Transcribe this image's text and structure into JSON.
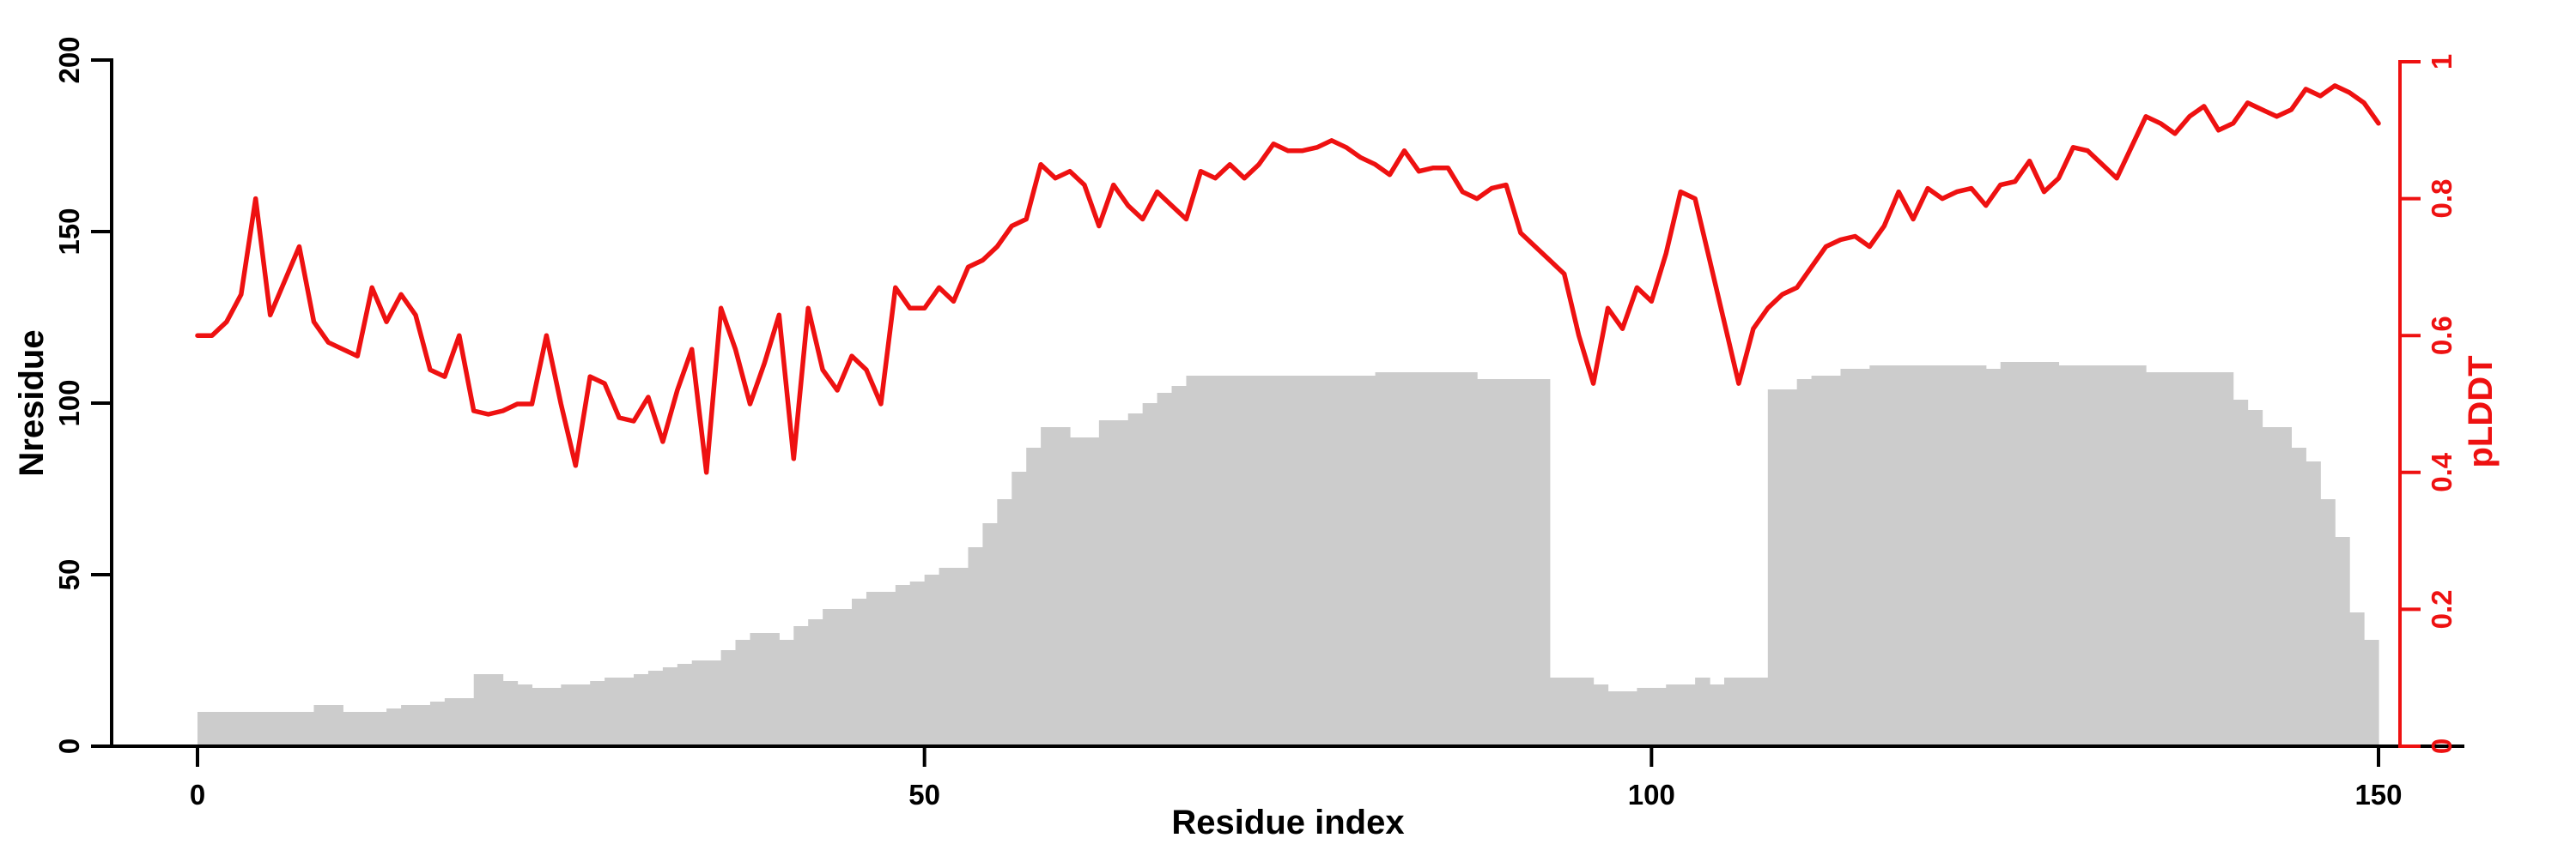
{
  "figure": {
    "background": "#ffffff"
  },
  "chart_data": {
    "type": "bar+line",
    "title": "",
    "axes": {
      "x": {
        "label": "Residue index",
        "ticks": [
          0,
          50,
          100,
          150
        ],
        "tick_labels": [
          "0",
          "50",
          "100",
          "150"
        ],
        "range": [
          0,
          151.6
        ],
        "color": "#000000"
      },
      "y_left": {
        "label": "Nresidue",
        "ticks": [
          0,
          50,
          100,
          150,
          200
        ],
        "tick_labels": [
          "0",
          "50",
          "100",
          "150",
          "200"
        ],
        "range": [
          0,
          200
        ],
        "color": "#000000"
      },
      "y_right": {
        "label": "pLDDT",
        "ticks": [
          0,
          0.2,
          0.4,
          0.6,
          0.8,
          1
        ],
        "tick_labels": [
          "0",
          "0.2",
          "0.4",
          "0.6",
          "0.8",
          "1"
        ],
        "range": [
          0,
          1
        ],
        "color": "#ee1111"
      }
    },
    "grid": false,
    "legend": "none",
    "bars": {
      "name": "Nresidue",
      "color": "#cccccc",
      "bin_start": 0,
      "bin_width": 1,
      "values": [
        10,
        10,
        10,
        10,
        10,
        10,
        10,
        10,
        12,
        12,
        10,
        10,
        10,
        11,
        12,
        12,
        13,
        14,
        14,
        21,
        21,
        19,
        18,
        17,
        17,
        18,
        18,
        19,
        20,
        20,
        21,
        22,
        23,
        24,
        25,
        25,
        28,
        31,
        33,
        33,
        31,
        35,
        37,
        40,
        40,
        43,
        45,
        45,
        47,
        48,
        50,
        52,
        52,
        58,
        65,
        72,
        80,
        87,
        93,
        93,
        90,
        90,
        95,
        95,
        97,
        100,
        103,
        105,
        108,
        108,
        108,
        108,
        108,
        108,
        108,
        108,
        108,
        108,
        108,
        108,
        108,
        109,
        109,
        109,
        109,
        109,
        109,
        109,
        107,
        107,
        107,
        107,
        107,
        20,
        20,
        20,
        18,
        16,
        16,
        17,
        17,
        18,
        18,
        20,
        18,
        20,
        20,
        20,
        104,
        104,
        107,
        108,
        108,
        110,
        110,
        111,
        111,
        111,
        111,
        111,
        111,
        111,
        111,
        110,
        112,
        112,
        112,
        112,
        111,
        111,
        111,
        111,
        111,
        111,
        109,
        109,
        109,
        109,
        109,
        109,
        101,
        98,
        93,
        93,
        87,
        83,
        72,
        61,
        39,
        31
      ]
    },
    "line": {
      "name": "pLDDT",
      "color": "#ee1111",
      "x_start": 0,
      "x_step": 1,
      "values": [
        0.6,
        0.6,
        0.62,
        0.66,
        0.8,
        0.63,
        0.68,
        0.73,
        0.62,
        0.59,
        0.58,
        0.57,
        0.67,
        0.62,
        0.66,
        0.63,
        0.55,
        0.54,
        0.6,
        0.49,
        0.485,
        0.49,
        0.5,
        0.5,
        0.6,
        0.5,
        0.41,
        0.54,
        0.53,
        0.48,
        0.475,
        0.51,
        0.445,
        0.52,
        0.58,
        0.4,
        0.64,
        0.58,
        0.5,
        0.56,
        0.63,
        0.42,
        0.64,
        0.55,
        0.52,
        0.57,
        0.55,
        0.5,
        0.67,
        0.64,
        0.64,
        0.67,
        0.65,
        0.7,
        0.71,
        0.73,
        0.76,
        0.77,
        0.85,
        0.83,
        0.84,
        0.82,
        0.76,
        0.82,
        0.79,
        0.77,
        0.81,
        0.79,
        0.77,
        0.84,
        0.83,
        0.85,
        0.83,
        0.85,
        0.88,
        0.87,
        0.87,
        0.875,
        0.885,
        0.875,
        0.86,
        0.85,
        0.835,
        0.87,
        0.84,
        0.845,
        0.845,
        0.81,
        0.8,
        0.815,
        0.82,
        0.75,
        0.73,
        0.71,
        0.69,
        0.6,
        0.53,
        0.64,
        0.61,
        0.67,
        0.65,
        0.72,
        0.81,
        0.8,
        0.71,
        0.62,
        0.53,
        0.61,
        0.64,
        0.66,
        0.67,
        0.7,
        0.73,
        0.74,
        0.745,
        0.73,
        0.76,
        0.81,
        0.77,
        0.815,
        0.8,
        0.81,
        0.815,
        0.79,
        0.82,
        0.825,
        0.855,
        0.81,
        0.83,
        0.875,
        0.87,
        0.85,
        0.83,
        0.875,
        0.92,
        0.91,
        0.895,
        0.92,
        0.935,
        0.9,
        0.91,
        0.94,
        0.93,
        0.92,
        0.93,
        0.96,
        0.95,
        0.965,
        0.955,
        0.94,
        0.91
      ]
    }
  }
}
